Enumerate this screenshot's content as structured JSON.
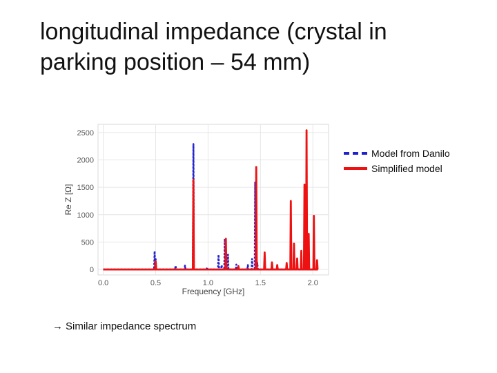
{
  "slide": {
    "title": "longitudinal impedance (crystal in parking position – 54 mm)",
    "note_arrow": "→",
    "note": "Similar impedance spectrum"
  },
  "chart_data": {
    "type": "line",
    "title": "",
    "xlabel": "Frequency [GHz]",
    "ylabel": "Re Z [Ω]",
    "xlim": [
      -0.05,
      2.15
    ],
    "ylim": [
      -100,
      2650
    ],
    "xticks": [
      0.0,
      0.5,
      1.0,
      1.5,
      2.0
    ],
    "xtick_labels": [
      "0.0",
      "0.5",
      "1.0",
      "1.5",
      "2.0"
    ],
    "yticks": [
      0,
      500,
      1000,
      1500,
      2000,
      2500
    ],
    "ytick_labels": [
      "0",
      "500",
      "1000",
      "1500",
      "2000",
      "2500"
    ],
    "grid": true,
    "legend_position": "right-outside",
    "series": [
      {
        "name": "Model from Danilo",
        "style": "dashed",
        "color": "#2222cc",
        "peaks": [
          [
            0.49,
            330
          ],
          [
            0.5,
            190
          ],
          [
            0.69,
            70
          ],
          [
            0.78,
            70
          ],
          [
            0.86,
            2290
          ],
          [
            0.99,
            40
          ],
          [
            1.1,
            270
          ],
          [
            1.13,
            80
          ],
          [
            1.16,
            560
          ],
          [
            1.19,
            270
          ],
          [
            1.27,
            90
          ],
          [
            1.38,
            80
          ],
          [
            1.42,
            190
          ],
          [
            1.45,
            1590
          ],
          [
            1.47,
            120
          ]
        ]
      },
      {
        "name": "Simplified model",
        "style": "solid",
        "color": "#ee1111",
        "peaks": [
          [
            0.5,
            150
          ],
          [
            0.86,
            1640
          ],
          [
            1.17,
            560
          ],
          [
            1.29,
            60
          ],
          [
            1.46,
            1870
          ],
          [
            1.54,
            310
          ],
          [
            1.61,
            130
          ],
          [
            1.66,
            80
          ],
          [
            1.75,
            120
          ],
          [
            1.79,
            1250
          ],
          [
            1.82,
            470
          ],
          [
            1.85,
            200
          ],
          [
            1.89,
            340
          ],
          [
            1.92,
            1550
          ],
          [
            1.94,
            2540
          ],
          [
            1.96,
            650
          ],
          [
            2.01,
            980
          ],
          [
            2.04,
            170
          ]
        ]
      }
    ]
  }
}
